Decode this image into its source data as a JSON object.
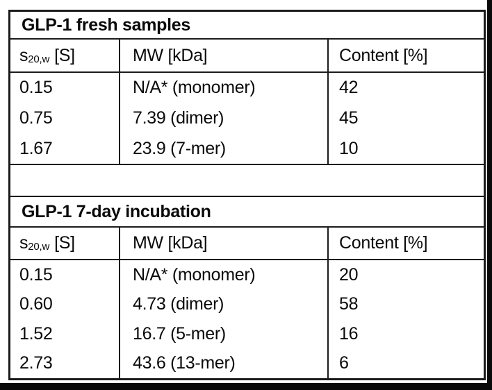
{
  "tables": [
    {
      "title": "GLP-1 fresh samples",
      "header": {
        "s_base": "s",
        "s_sub": "20,w",
        "s_unit": "[S]",
        "mw": "MW [kDa]",
        "content": "Content [%]"
      },
      "rows": [
        [
          "0.15",
          "N/A* (monomer)",
          "42"
        ],
        [
          "0.75",
          "7.39 (dimer)",
          "45"
        ],
        [
          "1.67",
          "23.9 (7-mer)",
          "10"
        ]
      ]
    },
    {
      "title": "GLP-1 7-day incubation",
      "header": {
        "s_base": "s",
        "s_sub": "20,w",
        "s_unit": "[S]",
        "mw": "MW [kDa]",
        "content": "Content [%]"
      },
      "rows": [
        [
          "0.15",
          "N/A* (monomer)",
          "20"
        ],
        [
          "0.60",
          "4.73 (dimer)",
          "58"
        ],
        [
          "1.52",
          "16.7 (5-mer)",
          "16"
        ],
        [
          "2.73",
          "43.6 (13-mer)",
          "6"
        ]
      ]
    }
  ]
}
